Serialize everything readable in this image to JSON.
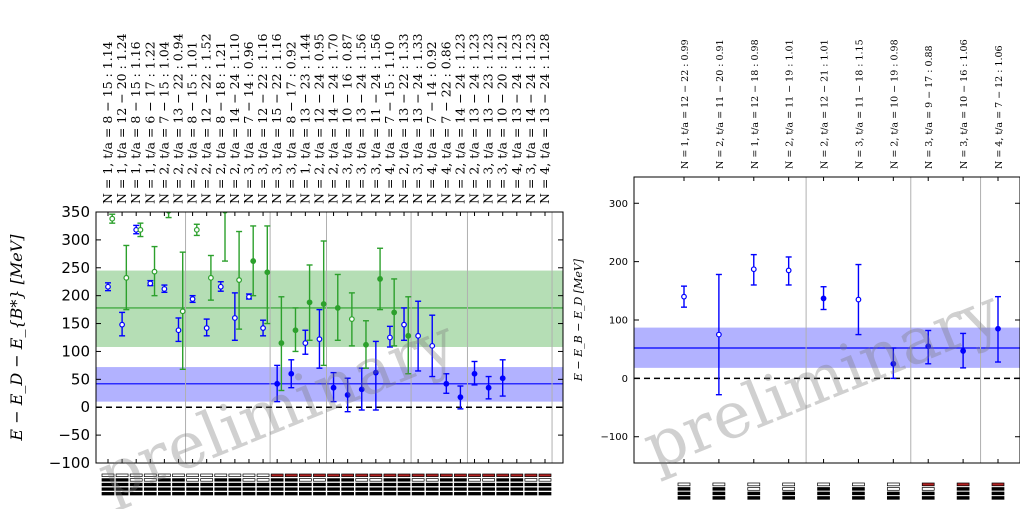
{
  "watermark": "preliminary",
  "chart_data": [
    {
      "type": "scatter",
      "ylabel": "E − E_D − E_{B*} [MeV]",
      "ylim": [
        -100,
        350
      ],
      "yticks": [
        -100,
        -50,
        0,
        50,
        100,
        150,
        200,
        250,
        300,
        350
      ],
      "bands": [
        {
          "color": "#2ca02c",
          "center": 178,
          "low": 108,
          "high": 245
        },
        {
          "color": "#0000ff",
          "center": 42,
          "low": 10,
          "high": 72
        }
      ],
      "group_dividers_after": [
        5,
        11,
        15,
        21,
        25,
        31
      ],
      "labels": [
        "N = 1, t/a = 8 − 15 : 1.14",
        "N = 1, t/a = 12 − 20 : 1.24",
        "N = 1, t/a = 8 − 15 : 1.16",
        "N = 1, t/a = 6 − 17 : 1.22",
        "N = 2, t/a = 7 − 15 : 1.04",
        "N = 2, t/a = 13 − 22 : 0.94",
        "N = 2, t/a = 8 − 15 : 1.01",
        "N = 2, t/a = 12 − 22 : 1.52",
        "N = 2, t/a = 8 − 18 : 1.21",
        "N = 2, t/a = 14 − 24 : 1.10",
        "N = 3, t/a = 7 − 14 : 0.96",
        "N = 3, t/a = 12 − 22 : 1.16",
        "N = 3, t/a = 15 − 22 : 1.16",
        "N = 3, t/a = 8 − 17 : 0.92",
        "N = 1, t/a = 13 − 23 : 1.44",
        "N = 2, t/a = 12 − 24 : 0.95",
        "N = 2, t/a = 14 − 24 : 1.70",
        "N = 3, t/a = 10 − 16 : 0.87",
        "N = 3, t/a = 13 − 24 : 1.56",
        "N = 3, t/a = 11 − 24 : 1.56",
        "N = 4, t/a = 7 − 15 : 1.10",
        "N = 2, t/a = 13 − 22 : 1.33",
        "N = 3, t/a = 13 − 24 : 1.33",
        "N = 4, t/a = 7 − 14 : 0.92",
        "N = 4, t/a = 7 − 22 : 0.86",
        "N = 2, t/a = 14 − 24 : 1.23",
        "N = 2, t/a = 13 − 24 : 1.23",
        "N = 3, t/a = 13 − 23 : 1.23",
        "N = 3, t/a = 10 − 20 : 1.21",
        "N = 4, t/a = 13 − 24 : 1.23",
        "N = 3, t/a = 14 − 24 : 1.23",
        "N = 4, t/a = 13 − 24 : 1.28"
      ],
      "series": [
        {
          "color": "#0000ff",
          "points": [
            {
              "i": 0,
              "y": 216,
              "lo": 209,
              "hi": 223,
              "open": true
            },
            {
              "i": 1,
              "y": 148,
              "lo": 128,
              "hi": 170,
              "open": true
            },
            {
              "i": 2,
              "y": 318,
              "lo": 311,
              "hi": 326,
              "open": true
            },
            {
              "i": 3,
              "y": 222,
              "lo": 218,
              "hi": 227,
              "open": true
            },
            {
              "i": 4,
              "y": 212,
              "lo": 206,
              "hi": 219,
              "open": true
            },
            {
              "i": 5,
              "y": 138,
              "lo": 118,
              "hi": 160,
              "open": true
            },
            {
              "i": 6,
              "y": 194,
              "lo": 188,
              "hi": 200,
              "open": true
            },
            {
              "i": 7,
              "y": 142,
              "lo": 128,
              "hi": 158,
              "open": true
            },
            {
              "i": 8,
              "y": 216,
              "lo": 208,
              "hi": 225,
              "open": true
            },
            {
              "i": 9,
              "y": 160,
              "lo": 120,
              "hi": 205,
              "open": true
            },
            {
              "i": 10,
              "y": 198,
              "lo": 194,
              "hi": 203,
              "open": true
            },
            {
              "i": 11,
              "y": 142,
              "lo": 128,
              "hi": 156,
              "open": true
            },
            {
              "i": 12,
              "y": 42,
              "lo": 10,
              "hi": 75,
              "open": false
            },
            {
              "i": 13,
              "y": 60,
              "lo": 35,
              "hi": 85,
              "open": false
            },
            {
              "i": 14,
              "y": 115,
              "lo": 95,
              "hi": 138,
              "open": true
            },
            {
              "i": 15,
              "y": 122,
              "lo": 70,
              "hi": 175,
              "open": true
            },
            {
              "i": 16,
              "y": 35,
              "lo": 10,
              "hi": 62,
              "open": false
            },
            {
              "i": 17,
              "y": 22,
              "lo": -8,
              "hi": 52,
              "open": false
            },
            {
              "i": 18,
              "y": 32,
              "lo": -5,
              "hi": 70,
              "open": false
            },
            {
              "i": 19,
              "y": 62,
              "lo": -5,
              "hi": 118,
              "open": false
            },
            {
              "i": 20,
              "y": 125,
              "lo": 108,
              "hi": 145,
              "open": true
            },
            {
              "i": 21,
              "y": 148,
              "lo": 120,
              "hi": 178,
              "open": true
            },
            {
              "i": 22,
              "y": 128,
              "lo": 65,
              "hi": 190,
              "open": true
            },
            {
              "i": 23,
              "y": 110,
              "lo": 55,
              "hi": 165,
              "open": true
            },
            {
              "i": 24,
              "y": 42,
              "lo": 25,
              "hi": 60,
              "open": false
            },
            {
              "i": 25,
              "y": 18,
              "lo": -3,
              "hi": 38,
              "open": false
            },
            {
              "i": 26,
              "y": 60,
              "lo": 40,
              "hi": 82,
              "open": false
            },
            {
              "i": 27,
              "y": 35,
              "lo": 15,
              "hi": 55,
              "open": false
            },
            {
              "i": 28,
              "y": 52,
              "lo": 20,
              "hi": 85,
              "open": false
            }
          ]
        },
        {
          "color": "#2ca02c",
          "points": [
            {
              "i": 0,
              "y": 338,
              "lo": 330,
              "hi": 346,
              "open": true
            },
            {
              "i": 1,
              "y": 232,
              "lo": 175,
              "hi": 290,
              "open": true
            },
            {
              "i": 2,
              "y": 318,
              "lo": 306,
              "hi": 330,
              "open": true
            },
            {
              "i": 3,
              "y": 243,
              "lo": 200,
              "hi": 288,
              "open": true
            },
            {
              "i": 4,
              "y": 352,
              "lo": 340,
              "hi": 365,
              "open": false
            },
            {
              "i": 5,
              "y": 172,
              "lo": 68,
              "hi": 278,
              "open": true
            },
            {
              "i": 6,
              "y": 318,
              "lo": 308,
              "hi": 328,
              "open": true
            },
            {
              "i": 7,
              "y": 232,
              "lo": 192,
              "hi": 272,
              "open": true
            },
            {
              "i": 8,
              "y": 352,
              "lo": 262,
              "hi": 360,
              "open": false
            },
            {
              "i": 9,
              "y": 228,
              "lo": 140,
              "hi": 315,
              "open": true
            },
            {
              "i": 10,
              "y": 262,
              "lo": 200,
              "hi": 325,
              "open": false
            },
            {
              "i": 11,
              "y": 242,
              "lo": 150,
              "hi": 325,
              "open": false
            },
            {
              "i": 12,
              "y": 115,
              "lo": 30,
              "hi": 198,
              "open": false
            },
            {
              "i": 13,
              "y": 138,
              "lo": 100,
              "hi": 178,
              "open": false
            },
            {
              "i": 14,
              "y": 188,
              "lo": 120,
              "hi": 255,
              "open": false
            },
            {
              "i": 15,
              "y": 185,
              "lo": 75,
              "hi": 298,
              "open": false
            },
            {
              "i": 16,
              "y": 178,
              "lo": 120,
              "hi": 238,
              "open": false
            },
            {
              "i": 17,
              "y": 158,
              "lo": 110,
              "hi": 205,
              "open": true
            },
            {
              "i": 18,
              "y": 112,
              "lo": 70,
              "hi": 155,
              "open": false
            },
            {
              "i": 19,
              "y": 230,
              "lo": 175,
              "hi": 285,
              "open": false
            },
            {
              "i": 20,
              "y": 170,
              "lo": 110,
              "hi": 230,
              "open": false
            },
            {
              "i": 21,
              "y": 128,
              "lo": 60,
              "hi": 198,
              "open": false
            }
          ]
        }
      ]
    },
    {
      "type": "scatter",
      "ylabel": "E − E_B − E_D [MeV]",
      "ylim": [
        -145,
        345
      ],
      "yticks": [
        -100,
        0,
        100,
        200,
        300
      ],
      "bands": [
        {
          "color": "#0000ff",
          "center": 52,
          "low": 18,
          "high": 87
        }
      ],
      "group_dividers_after": [
        3,
        6,
        8
      ],
      "labels": [
        "N = 1, t/a = 12 − 22 : 0.99",
        "N = 2, t/a = 11 − 20 : 0.91",
        "N = 1, t/a = 12 − 18 : 0.98",
        "N = 2, t/a = 11 − 19 : 1.01",
        "N = 2, t/a = 12 − 21 : 1.01",
        "N = 3, t/a = 11 − 18 : 1.15",
        "N = 2, t/a = 10 − 19 : 0.98",
        "N = 3, t/a = 9 − 17 : 0.88",
        "N = 3, t/a = 10 − 16 : 1.06",
        "N = 4, t/a = 7 − 12 : 1.06"
      ],
      "series": [
        {
          "color": "#0000ff",
          "points": [
            {
              "i": 0,
              "y": 140,
              "lo": 122,
              "hi": 158,
              "open": true
            },
            {
              "i": 1,
              "y": 75,
              "lo": -28,
              "hi": 178,
              "open": true
            },
            {
              "i": 2,
              "y": 187,
              "lo": 160,
              "hi": 212,
              "open": true
            },
            {
              "i": 3,
              "y": 185,
              "lo": 160,
              "hi": 208,
              "open": true
            },
            {
              "i": 4,
              "y": 137,
              "lo": 118,
              "hi": 157,
              "open": false
            },
            {
              "i": 5,
              "y": 135,
              "lo": 75,
              "hi": 195,
              "open": true
            },
            {
              "i": 6,
              "y": 25,
              "lo": 0,
              "hi": 52,
              "open": false
            },
            {
              "i": 7,
              "y": 55,
              "lo": 25,
              "hi": 82,
              "open": false
            },
            {
              "i": 8,
              "y": 47,
              "lo": 18,
              "hi": 77,
              "open": false
            },
            {
              "i": 9,
              "y": 85,
              "lo": 28,
              "hi": 140,
              "open": false
            }
          ]
        }
      ]
    }
  ]
}
